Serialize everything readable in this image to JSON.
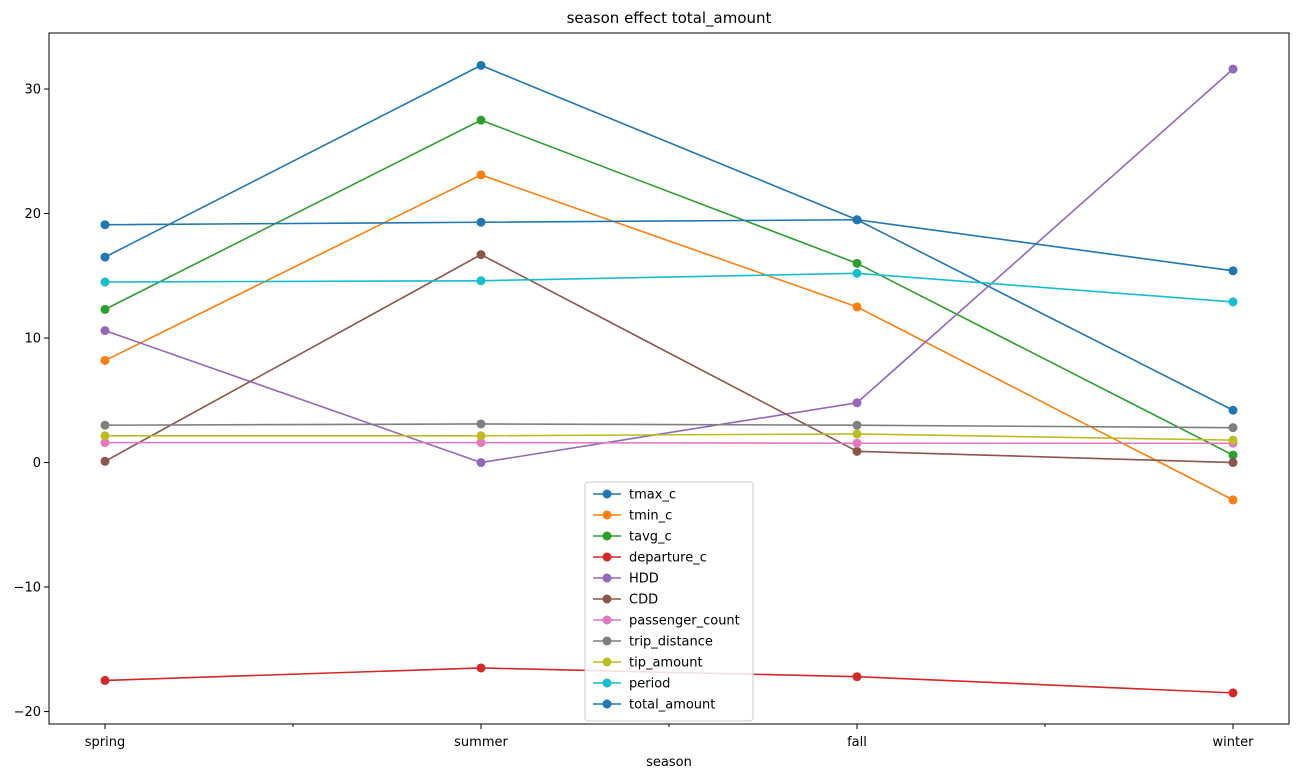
{
  "chart_data": {
    "type": "line",
    "title": "season effect total_amount",
    "xlabel": "season",
    "ylabel": "",
    "categories": [
      "spring",
      "summer",
      "fall",
      "winter"
    ],
    "ylim": [
      -21,
      34.5
    ],
    "yticks": [
      -20,
      -10,
      0,
      10,
      20,
      30
    ],
    "ytick_labels": [
      "−20",
      "−10",
      "0",
      "10",
      "20",
      "30"
    ],
    "grid": false,
    "legend_position": "lower-center",
    "series": [
      {
        "name": "tmax_c",
        "color": "#1f77b4",
        "values": [
          16.5,
          31.9,
          19.5,
          4.2
        ]
      },
      {
        "name": "tmin_c",
        "color": "#ff7f0e",
        "values": [
          8.2,
          23.1,
          12.5,
          -3.0
        ]
      },
      {
        "name": "tavg_c",
        "color": "#2ca02c",
        "values": [
          12.3,
          27.5,
          16.0,
          0.6
        ]
      },
      {
        "name": "departure_c",
        "color": "#d62728",
        "values": [
          -17.5,
          -16.5,
          -17.2,
          -18.5
        ]
      },
      {
        "name": "HDD",
        "color": "#9467bd",
        "values": [
          10.6,
          0.0,
          4.8,
          31.6
        ]
      },
      {
        "name": "CDD",
        "color": "#8c564b",
        "values": [
          0.1,
          16.7,
          0.9,
          0.0
        ]
      },
      {
        "name": "passenger_count",
        "color": "#e377c2",
        "values": [
          1.6,
          1.6,
          1.55,
          1.55
        ]
      },
      {
        "name": "trip_distance",
        "color": "#7f7f7f",
        "values": [
          3.0,
          3.1,
          3.0,
          2.8
        ]
      },
      {
        "name": "tip_amount",
        "color": "#bcbd22",
        "values": [
          2.15,
          2.15,
          2.3,
          1.8
        ]
      },
      {
        "name": "period",
        "color": "#17becf",
        "values": [
          14.5,
          14.6,
          15.2,
          12.9
        ]
      },
      {
        "name": "total_amount",
        "color": "#1f77b4",
        "values": [
          19.1,
          19.3,
          19.5,
          15.4
        ]
      }
    ]
  }
}
